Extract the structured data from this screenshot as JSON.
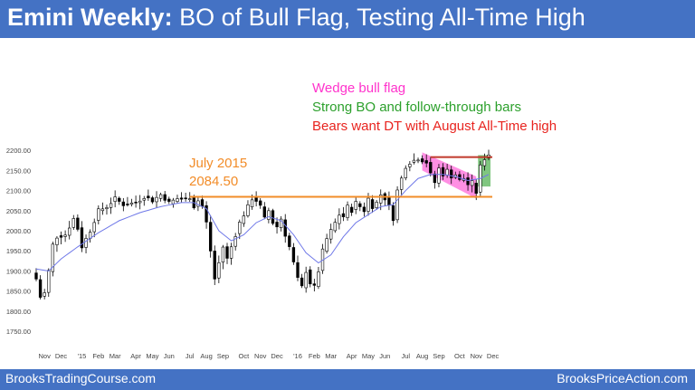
{
  "header": {
    "title_bold": "Emini Weekly:",
    "title_rest": " BO of Bull Flag, Testing All-Time High",
    "background": "#4472c4"
  },
  "notes": [
    {
      "text": "Wedge bull flag",
      "color": "#ff33cc"
    },
    {
      "text": "Strong BO and follow-through bars",
      "color": "#2ca02c"
    },
    {
      "text": "Bears want DT with August All-Time high",
      "color": "#e8241f"
    }
  ],
  "annotation": {
    "line1": "July 2015",
    "line2": "2084.50",
    "color": "#f28c28"
  },
  "footer": {
    "left": "BrooksTradingCourse.com",
    "right": "BrooksPriceAction.com"
  },
  "chart_data": {
    "type": "candlestick",
    "ylim": [
      1730,
      2225
    ],
    "y_ticks": [
      1750,
      1800,
      1850,
      1900,
      1950,
      2000,
      2050,
      2100,
      2150,
      2200
    ],
    "y_tick_labels": [
      "1750.00",
      "1800.00",
      "1850.00",
      "1900.00",
      "1950.00",
      "2000.00",
      "2050.00",
      "2100.00",
      "2150.00",
      "2200.00"
    ],
    "x_labels": [
      {
        "label": "Nov",
        "week": 2
      },
      {
        "label": "Dec",
        "week": 6
      },
      {
        "label": "'15",
        "week": 11
      },
      {
        "label": "Feb",
        "week": 15
      },
      {
        "label": "Mar",
        "week": 19
      },
      {
        "label": "Apr",
        "week": 24
      },
      {
        "label": "May",
        "week": 28
      },
      {
        "label": "Jun",
        "week": 32
      },
      {
        "label": "Jul",
        "week": 37
      },
      {
        "label": "Aug",
        "week": 41
      },
      {
        "label": "Sep",
        "week": 45
      },
      {
        "label": "Oct",
        "week": 50
      },
      {
        "label": "Nov",
        "week": 54
      },
      {
        "label": "Dec",
        "week": 58
      },
      {
        "label": "'16",
        "week": 63
      },
      {
        "label": "Feb",
        "week": 67
      },
      {
        "label": "Mar",
        "week": 71
      },
      {
        "label": "Apr",
        "week": 76
      },
      {
        "label": "May",
        "week": 80
      },
      {
        "label": "Jun",
        "week": 84
      },
      {
        "label": "Jul",
        "week": 89
      },
      {
        "label": "Aug",
        "week": 93
      },
      {
        "label": "Sep",
        "week": 97
      },
      {
        "label": "Oct",
        "week": 102
      },
      {
        "label": "Nov",
        "week": 106
      },
      {
        "label": "Dec",
        "week": 110
      }
    ],
    "close_anchors": [
      [
        0,
        1880
      ],
      [
        1,
        1835
      ],
      [
        2,
        1845
      ],
      [
        3,
        1900
      ],
      [
        4,
        1965
      ],
      [
        5,
        1985
      ],
      [
        7,
        1990
      ],
      [
        9,
        2030
      ],
      [
        10,
        2005
      ],
      [
        11,
        1960
      ],
      [
        13,
        2000
      ],
      [
        15,
        2050
      ],
      [
        17,
        2060
      ],
      [
        19,
        2080
      ],
      [
        21,
        2065
      ],
      [
        24,
        2070
      ],
      [
        26,
        2085
      ],
      [
        28,
        2075
      ],
      [
        30,
        2090
      ],
      [
        32,
        2070
      ],
      [
        34,
        2080
      ],
      [
        36,
        2078
      ],
      [
        37,
        2084
      ],
      [
        38,
        2060
      ],
      [
        39,
        2075
      ],
      [
        40,
        2060
      ],
      [
        41,
        2020
      ],
      [
        42,
        1950
      ],
      [
        43,
        1880
      ],
      [
        44,
        1920
      ],
      [
        45,
        1960
      ],
      [
        46,
        1930
      ],
      [
        47,
        1960
      ],
      [
        48,
        1990
      ],
      [
        49,
        2020
      ],
      [
        50,
        2040
      ],
      [
        51,
        2060
      ],
      [
        52,
        2080
      ],
      [
        53,
        2075
      ],
      [
        54,
        2060
      ],
      [
        55,
        2030
      ],
      [
        56,
        2050
      ],
      [
        57,
        2020
      ],
      [
        58,
        2010
      ],
      [
        59,
        2030
      ],
      [
        60,
        1990
      ],
      [
        61,
        1960
      ],
      [
        62,
        1920
      ],
      [
        63,
        1880
      ],
      [
        64,
        1860
      ],
      [
        65,
        1900
      ],
      [
        66,
        1870
      ],
      [
        67,
        1860
      ],
      [
        68,
        1900
      ],
      [
        69,
        1950
      ],
      [
        70,
        1980
      ],
      [
        71,
        2000
      ],
      [
        72,
        2020
      ],
      [
        73,
        2040
      ],
      [
        74,
        2035
      ],
      [
        75,
        2060
      ],
      [
        76,
        2050
      ],
      [
        77,
        2070
      ],
      [
        78,
        2060
      ],
      [
        79,
        2050
      ],
      [
        80,
        2080
      ],
      [
        81,
        2060
      ],
      [
        82,
        2070
      ],
      [
        83,
        2090
      ],
      [
        84,
        2080
      ],
      [
        85,
        2060
      ],
      [
        86,
        2030
      ],
      [
        87,
        2100
      ],
      [
        88,
        2130
      ],
      [
        89,
        2160
      ],
      [
        90,
        2170
      ],
      [
        91,
        2175
      ],
      [
        92,
        2180
      ],
      [
        93,
        2175
      ],
      [
        94,
        2170
      ],
      [
        95,
        2140
      ],
      [
        96,
        2120
      ],
      [
        97,
        2155
      ],
      [
        98,
        2140
      ],
      [
        99,
        2150
      ],
      [
        100,
        2135
      ],
      [
        101,
        2140
      ],
      [
        102,
        2125
      ],
      [
        103,
        2130
      ],
      [
        104,
        2115
      ],
      [
        105,
        2120
      ],
      [
        106,
        2095
      ],
      [
        107,
        2160
      ],
      [
        108,
        2180
      ],
      [
        109,
        2190
      ]
    ],
    "moving_average_anchors": [
      [
        0,
        1905
      ],
      [
        3,
        1900
      ],
      [
        6,
        1930
      ],
      [
        10,
        1960
      ],
      [
        15,
        1995
      ],
      [
        20,
        2025
      ],
      [
        25,
        2045
      ],
      [
        30,
        2060
      ],
      [
        35,
        2070
      ],
      [
        38,
        2070
      ],
      [
        41,
        2055
      ],
      [
        44,
        2000
      ],
      [
        47,
        1975
      ],
      [
        50,
        1990
      ],
      [
        53,
        2020
      ],
      [
        56,
        2035
      ],
      [
        59,
        2025
      ],
      [
        62,
        1990
      ],
      [
        65,
        1945
      ],
      [
        68,
        1920
      ],
      [
        71,
        1940
      ],
      [
        74,
        1985
      ],
      [
        77,
        2020
      ],
      [
        80,
        2040
      ],
      [
        83,
        2060
      ],
      [
        86,
        2065
      ],
      [
        89,
        2100
      ],
      [
        92,
        2130
      ],
      [
        95,
        2140
      ],
      [
        98,
        2140
      ],
      [
        101,
        2135
      ],
      [
        104,
        2125
      ],
      [
        107,
        2130
      ],
      [
        109,
        2140
      ]
    ],
    "horizontal_lines": [
      {
        "name": "july-2015-high-line",
        "value": 2084.5,
        "from_week": 37,
        "to_week": 109,
        "color": "#f28c28"
      },
      {
        "name": "all-time-high-line",
        "value": 2183,
        "from_week": 95,
        "to_week": 109,
        "color": "#c0392b"
      }
    ],
    "wedge_channel": {
      "from_week": 93,
      "to_week": 106,
      "top_start": 2195,
      "top_end": 2135,
      "bottom_start": 2150,
      "bottom_end": 2080,
      "color": "#ff33cc"
    },
    "breakout_zone": {
      "from_week": 106,
      "to_week": 109,
      "top": 2188,
      "bottom": 2110,
      "color": "#2ca02c"
    },
    "colors": {
      "bull_body": "#ffffff",
      "bear_body": "#000000",
      "wick": "#000000",
      "moving_average": "#6f78e8",
      "axis_text": "#444444"
    }
  }
}
